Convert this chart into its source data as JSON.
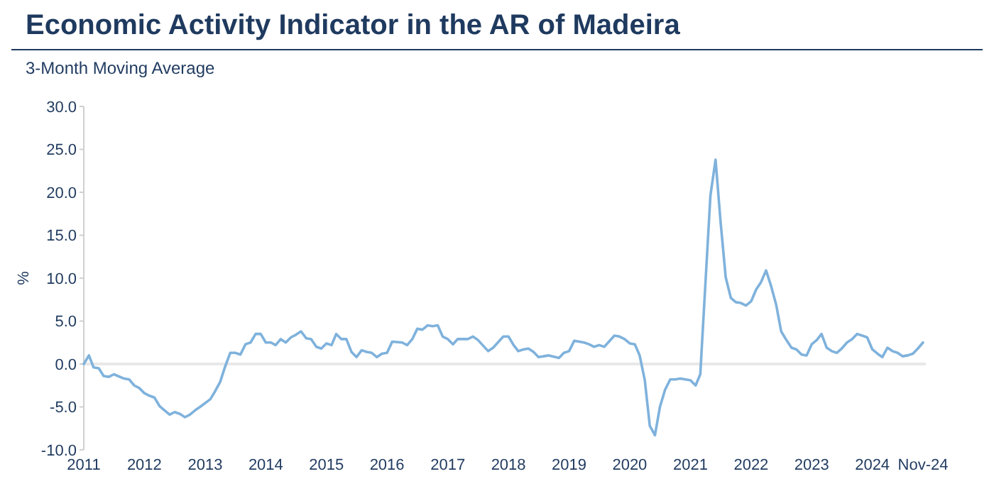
{
  "chart_data": {
    "type": "line",
    "title": "Economic Activity Indicator in the AR of Madeira",
    "subtitle": "3-Month Moving Average",
    "ylabel": "%",
    "x": [
      "2011-01",
      "2011-02",
      "2011-03",
      "2011-04",
      "2011-05",
      "2011-06",
      "2011-07",
      "2011-09",
      "2011-10",
      "2011-11",
      "2011-12",
      "2012-01",
      "2012-02",
      "2012-03",
      "2012-04",
      "2012-06",
      "2012-07",
      "2012-08",
      "2012-09",
      "2012-10",
      "2012-11",
      "2012-12",
      "2013-02",
      "2013-03",
      "2013-04",
      "2013-05",
      "2013-06",
      "2013-07",
      "2013-08",
      "2013-09",
      "2013-10",
      "2013-11",
      "2013-12",
      "2014-01",
      "2014-02",
      "2014-03",
      "2014-04",
      "2014-05",
      "2014-06",
      "2014-07",
      "2014-08",
      "2014-09",
      "2014-10",
      "2014-11",
      "2014-12",
      "2015-01",
      "2015-02",
      "2015-03",
      "2015-04",
      "2015-05",
      "2015-06",
      "2015-07",
      "2015-08",
      "2015-09",
      "2015-10",
      "2015-11",
      "2015-12",
      "2016-01",
      "2016-02",
      "2016-04",
      "2016-05",
      "2016-06",
      "2016-07",
      "2016-08",
      "2016-09",
      "2016-10",
      "2016-11",
      "2016-12",
      "2017-01",
      "2017-02",
      "2017-03",
      "2017-05",
      "2017-06",
      "2017-07",
      "2017-09",
      "2017-10",
      "2017-12",
      "2018-01",
      "2018-02",
      "2018-03",
      "2018-04",
      "2018-05",
      "2018-06",
      "2018-07",
      "2018-08",
      "2018-09",
      "2018-11",
      "2018-12",
      "2019-01",
      "2019-02",
      "2019-04",
      "2019-05",
      "2019-06",
      "2019-07",
      "2019-08",
      "2019-10",
      "2019-11",
      "2019-12",
      "2020-01",
      "2020-02",
      "2020-03",
      "2020-04",
      "2020-05",
      "2020-06",
      "2020-07",
      "2020-08",
      "2020-09",
      "2020-10",
      "2020-11",
      "2021-01",
      "2021-02",
      "2021-03",
      "2021-04",
      "2021-05",
      "2021-06",
      "2021-07",
      "2021-08",
      "2021-09",
      "2021-10",
      "2021-11",
      "2021-12",
      "2022-01",
      "2022-02",
      "2022-03",
      "2022-04",
      "2022-05",
      "2022-06",
      "2022-07",
      "2022-08",
      "2022-09",
      "2022-10",
      "2022-11",
      "2022-12",
      "2023-01",
      "2023-02",
      "2023-03",
      "2023-04",
      "2023-05",
      "2023-06",
      "2023-07",
      "2023-08",
      "2023-09",
      "2023-10",
      "2023-11",
      "2023-12",
      "2024-01",
      "2024-02",
      "2024-03",
      "2024-04",
      "2024-05",
      "2024-06",
      "2024-07",
      "2024-08",
      "2024-09",
      "2024-10",
      "2024-11"
    ],
    "series": [
      {
        "color": "#7fb2dc",
        "values": [
          0,
          1.0,
          -0.4,
          -0.5,
          -1.4,
          -1.5,
          -1.2,
          -1.7,
          -1.8,
          -2.5,
          -2.8,
          -3.4,
          -3.7,
          -3.9,
          -4.9,
          -5.9,
          -5.6,
          -5.8,
          -6.2,
          -5.9,
          -5.4,
          -5.0,
          -4.1,
          -3.2,
          -2.1,
          -0.3,
          1.3,
          1.3,
          1.1,
          2.3,
          2.5,
          3.5,
          3.5,
          2.5,
          2.5,
          2.2,
          2.9,
          2.5,
          3.1,
          3.4,
          3.8,
          3.0,
          2.9,
          2.0,
          1.8,
          2.4,
          2.2,
          3.5,
          2.9,
          2.9,
          1.4,
          0.8,
          1.6,
          1.4,
          1.3,
          0.8,
          1.2,
          1.3,
          2.6,
          2.5,
          2.2,
          2.9,
          4.1,
          4.0,
          4.5,
          4.4,
          4.5,
          3.2,
          2.9,
          2.3,
          2.9,
          2.9,
          3.2,
          2.8,
          1.5,
          1.9,
          3.2,
          3.2,
          2.2,
          1.5,
          1.7,
          1.8,
          1.4,
          0.8,
          0.9,
          1.0,
          0.7,
          1.3,
          1.5,
          2.7,
          2.5,
          2.3,
          2.0,
          2.2,
          2.0,
          3.3,
          3.2,
          2.9,
          2.4,
          2.3,
          1.0,
          -1.9,
          -7.2,
          -8.3,
          -5.0,
          -3.0,
          -1.8,
          -1.8,
          -1.7,
          -1.9,
          -2.5,
          -1.2,
          9.4,
          19.6,
          23.8,
          16.6,
          10.1,
          7.7,
          7.2,
          7.1,
          6.8,
          7.3,
          8.7,
          9.5,
          10.9,
          9.1,
          6.9,
          3.8,
          2.8,
          1.9,
          1.7,
          1.1,
          1.0,
          2.3,
          2.8,
          3.5,
          1.9,
          1.5,
          1.3,
          1.8,
          2.5,
          2.9,
          3.5,
          3.3,
          3.1,
          1.7,
          1.2,
          0.8,
          1.9,
          1.5,
          1.3,
          0.9,
          1.0,
          1.2,
          1.8,
          2.5
        ]
      }
    ],
    "xlim": [
      "2011-01",
      "2024-11"
    ],
    "xticks": [
      {
        "value": "2011-01",
        "label": "2011"
      },
      {
        "value": "2012-01",
        "label": "2012"
      },
      {
        "value": "2013-01",
        "label": "2013"
      },
      {
        "value": "2014-01",
        "label": "2014"
      },
      {
        "value": "2015-01",
        "label": "2015"
      },
      {
        "value": "2016-01",
        "label": "2016"
      },
      {
        "value": "2017-01",
        "label": "2017"
      },
      {
        "value": "2018-01",
        "label": "2018"
      },
      {
        "value": "2019-01",
        "label": "2019"
      },
      {
        "value": "2020-01",
        "label": "2020"
      },
      {
        "value": "2021-01",
        "label": "2021"
      },
      {
        "value": "2022-01",
        "label": "2022"
      },
      {
        "value": "2023-01",
        "label": "2023"
      },
      {
        "value": "2024-01",
        "label": "2024"
      },
      {
        "value": "2024-11",
        "label": "Nov-24"
      }
    ],
    "ylim": [
      -10,
      30
    ],
    "yticks": [
      {
        "value": -10,
        "label": "-10.0"
      },
      {
        "value": -5,
        "label": "-5.0"
      },
      {
        "value": 0,
        "label": "0.0"
      },
      {
        "value": 5,
        "label": "5.0"
      },
      {
        "value": 10,
        "label": "10.0"
      },
      {
        "value": 15,
        "label": "15.0"
      },
      {
        "value": 20,
        "label": "20.0"
      },
      {
        "value": 25,
        "label": "25.0"
      },
      {
        "value": 30,
        "label": "30.0"
      }
    ],
    "ref_lines": [
      {
        "axis": "y",
        "value": 0,
        "color": "#e8e8e8"
      }
    ],
    "grid": false,
    "marker": "none",
    "line_style": "solid"
  }
}
